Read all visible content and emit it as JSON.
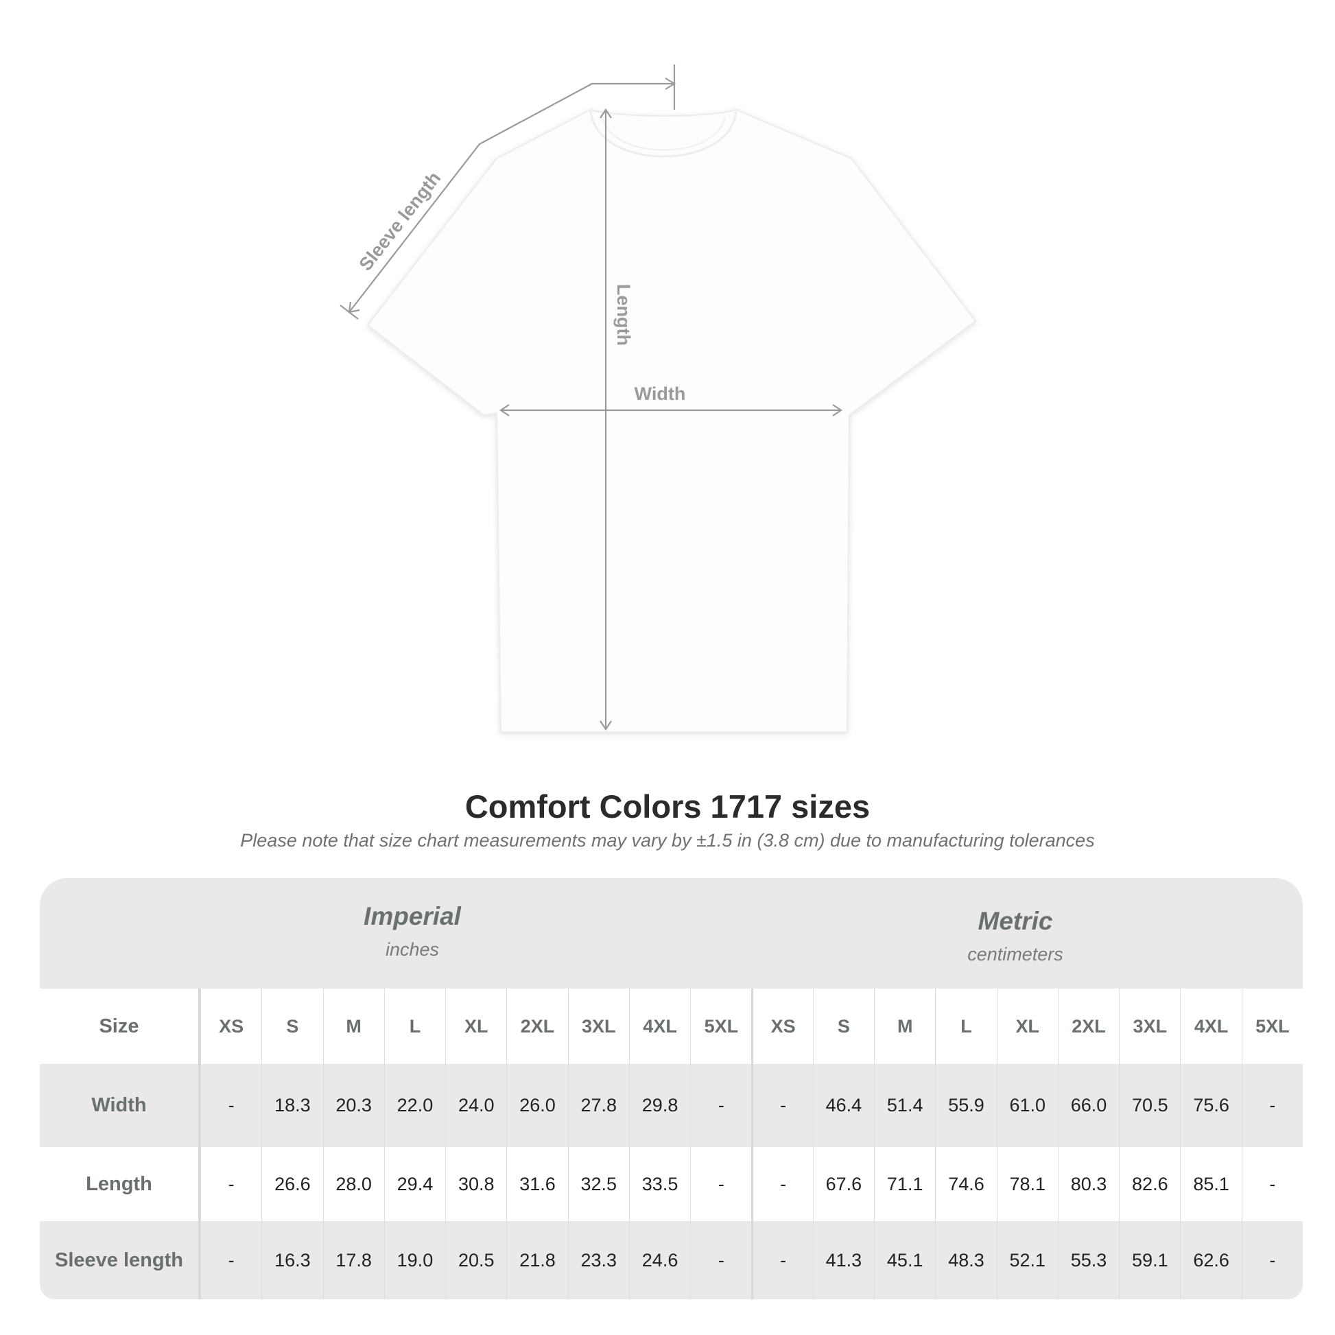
{
  "diagram": {
    "labels": {
      "sleeve": "Sleeve length",
      "length": "Length",
      "width": "Width"
    },
    "line_color": "#9a9a9a"
  },
  "title": "Comfort Colors 1717 sizes",
  "note": "Please note that size chart measurements may vary by ±1.5 in (3.8 cm) due to manufacturing tolerances",
  "table": {
    "imperial": {
      "name": "Imperial",
      "unit": "inches"
    },
    "metric": {
      "name": "Metric",
      "unit": "centimeters"
    },
    "size_label": "Size",
    "sizes": [
      "XS",
      "S",
      "M",
      "L",
      "XL",
      "2XL",
      "3XL",
      "4XL",
      "5XL"
    ],
    "rows": [
      {
        "label": "Width",
        "imperial": [
          "-",
          "18.3",
          "20.3",
          "22.0",
          "24.0",
          "26.0",
          "27.8",
          "29.8",
          "-"
        ],
        "metric": [
          "-",
          "46.4",
          "51.4",
          "55.9",
          "61.0",
          "66.0",
          "70.5",
          "75.6",
          "-"
        ]
      },
      {
        "label": "Length",
        "imperial": [
          "-",
          "26.6",
          "28.0",
          "29.4",
          "30.8",
          "31.6",
          "32.5",
          "33.5",
          "-"
        ],
        "metric": [
          "-",
          "67.6",
          "71.1",
          "74.6",
          "78.1",
          "80.3",
          "82.6",
          "85.1",
          "-"
        ]
      },
      {
        "label": "Sleeve length",
        "imperial": [
          "-",
          "16.3",
          "17.8",
          "19.0",
          "20.5",
          "21.8",
          "23.3",
          "24.6",
          "-"
        ],
        "metric": [
          "-",
          "41.3",
          "45.1",
          "48.3",
          "52.1",
          "55.3",
          "59.1",
          "62.6",
          "-"
        ]
      }
    ]
  }
}
